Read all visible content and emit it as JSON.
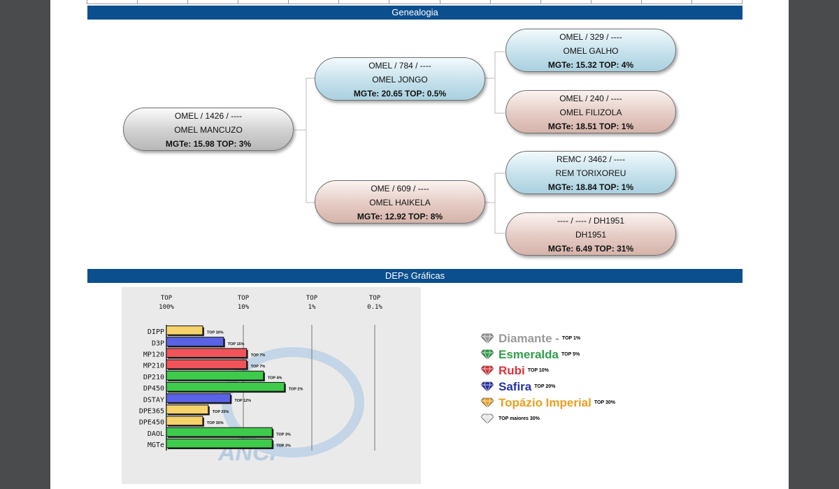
{
  "sections": {
    "genealogy": "Genealogia",
    "deps": "DEPs Gráficas"
  },
  "genealogy": {
    "animal": {
      "line1": "OMEL / 1426 / ----",
      "line2": "OMEL MANCUZO",
      "line3": "MGTe: 15.98   TOP: 3%"
    },
    "sire": {
      "line1": "OMEL / 784 / ----",
      "line2": "OMEL JONGO",
      "line3": "MGTe: 20.65   TOP: 0.5%"
    },
    "dam": {
      "line1": "OME / 609 / ----",
      "line2": "OMEL HAIKELA",
      "line3": "MGTe: 12.92   TOP: 8%"
    },
    "sire_sire": {
      "line1": "OMEL / 329 / ----",
      "line2": "OMEL GALHO",
      "line3": "MGTe: 15.32   TOP: 4%"
    },
    "sire_dam": {
      "line1": "OMEL / 240 / ----",
      "line2": "OMEL FILIZOLA",
      "line3": "MGTe: 18.51   TOP: 1%"
    },
    "dam_sire": {
      "line1": "REMC / 3462 / ----",
      "line2": "REM TORIXOREU",
      "line3": "MGTe: 18.84   TOP: 1%"
    },
    "dam_dam": {
      "line1": "---- / ---- / DH1951",
      "line2": "DH1951",
      "line3": "MGTe: 6.49   TOP: 31%"
    }
  },
  "chart_data": {
    "type": "bar",
    "orientation": "horizontal",
    "x_ticks": [
      {
        "top": "TOP",
        "bottom": "100%"
      },
      {
        "top": "TOP",
        "bottom": "10%"
      },
      {
        "top": "TOP",
        "bottom": "1%"
      },
      {
        "top": "TOP",
        "bottom": "0.1%"
      }
    ],
    "categories": [
      "DIPP",
      "D3P",
      "MP120",
      "MP210",
      "DP210",
      "DP450",
      "DSTAY",
      "DPE365",
      "DPE450",
      "DAOL",
      "MGTe"
    ],
    "values_top_pct": [
      30,
      15,
      7,
      7,
      4,
      2,
      12,
      25,
      30,
      3,
      3
    ],
    "labels": [
      "TOP 30%",
      "TOP 15%",
      "TOP 7%",
      "TOP 7%",
      "TOP 4%",
      "TOP 2%",
      "TOP 12%",
      "TOP 25%",
      "TOP 30%",
      "TOP 3%",
      "TOP 3%"
    ],
    "tiers": [
      "topazio",
      "safira",
      "rubi",
      "rubi",
      "esmeralda",
      "esmeralda",
      "safira",
      "topazio",
      "topazio",
      "esmeralda",
      "esmeralda"
    ],
    "tier_colors": {
      "diamante": "#9a9a9a",
      "esmeralda": "#3ecb4b",
      "rubi": "#f0545a",
      "safira": "#5a63e6",
      "topazio": "#f6d36a"
    },
    "watermark": "ANCP"
  },
  "legend": [
    {
      "name": "Diamante",
      "sep": " -",
      "top": "TOP 1%",
      "color": "#9a9a9a"
    },
    {
      "name": "Esmeralda",
      "sep": "",
      "top": "TOP 5%",
      "color": "#2f9e4a"
    },
    {
      "name": "Rubi",
      "sep": "",
      "top": "TOP 10%",
      "color": "#d8333a"
    },
    {
      "name": "Safira",
      "sep": "",
      "top": "TOP 20%",
      "color": "#2532a8"
    },
    {
      "name": "Topázio Imperial",
      "sep": "",
      "top": "TOP 30%",
      "color": "#e8a020"
    }
  ],
  "legend_footer": "TOP maiores 30%"
}
